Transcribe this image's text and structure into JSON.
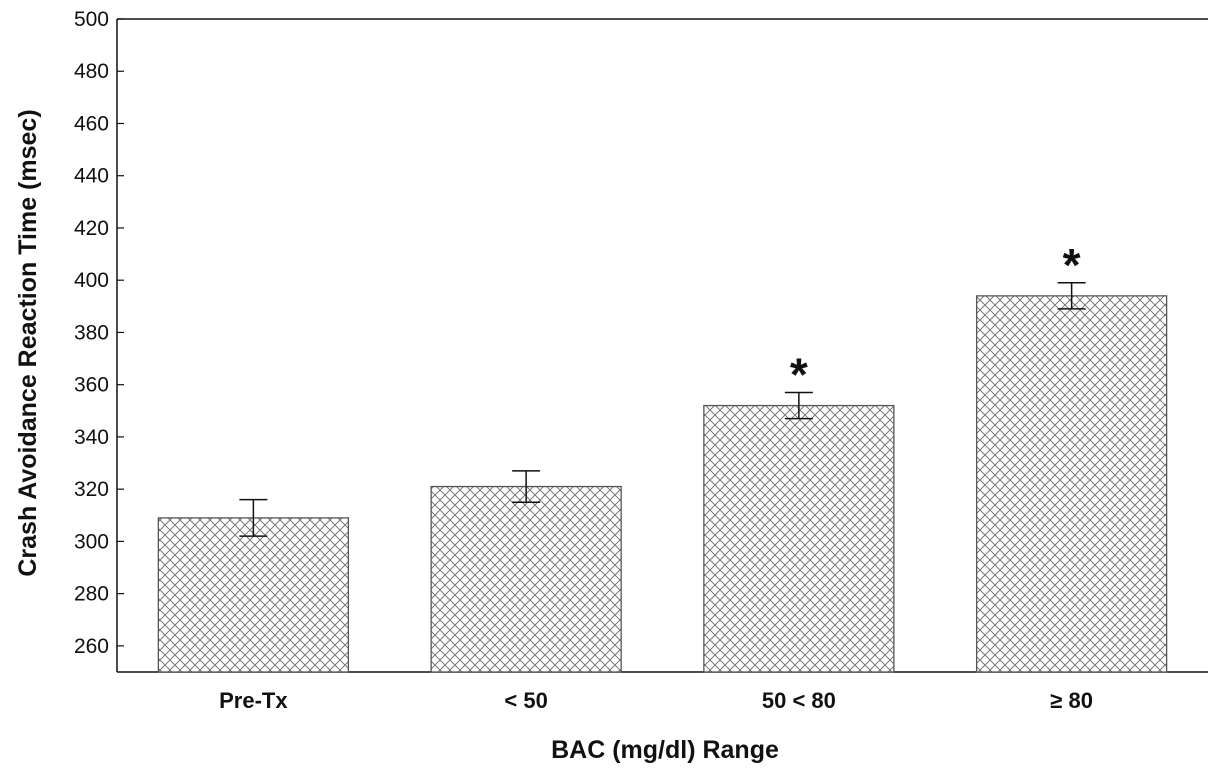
{
  "chart_data": {
    "type": "bar",
    "title": "",
    "xlabel": "BAC (mg/dl) Range",
    "ylabel": "Crash Avoidance Reaction Time (msec)",
    "ylim": [
      250,
      500
    ],
    "yticks": [
      260,
      280,
      300,
      320,
      340,
      360,
      380,
      400,
      420,
      440,
      460,
      480,
      500
    ],
    "categories": [
      "Pre-Tx",
      "< 50",
      "50 < 80",
      "≥ 80"
    ],
    "values": [
      309,
      321,
      352,
      394
    ],
    "error_low": [
      302,
      315,
      347,
      389
    ],
    "error_high": [
      316,
      327,
      357,
      399
    ],
    "significance": [
      "",
      "",
      "*",
      "*"
    ],
    "bar_pattern": "crosshatch",
    "bar_fill": "#ffffff",
    "line_color": "#555555",
    "grid": false,
    "legend": "none"
  }
}
